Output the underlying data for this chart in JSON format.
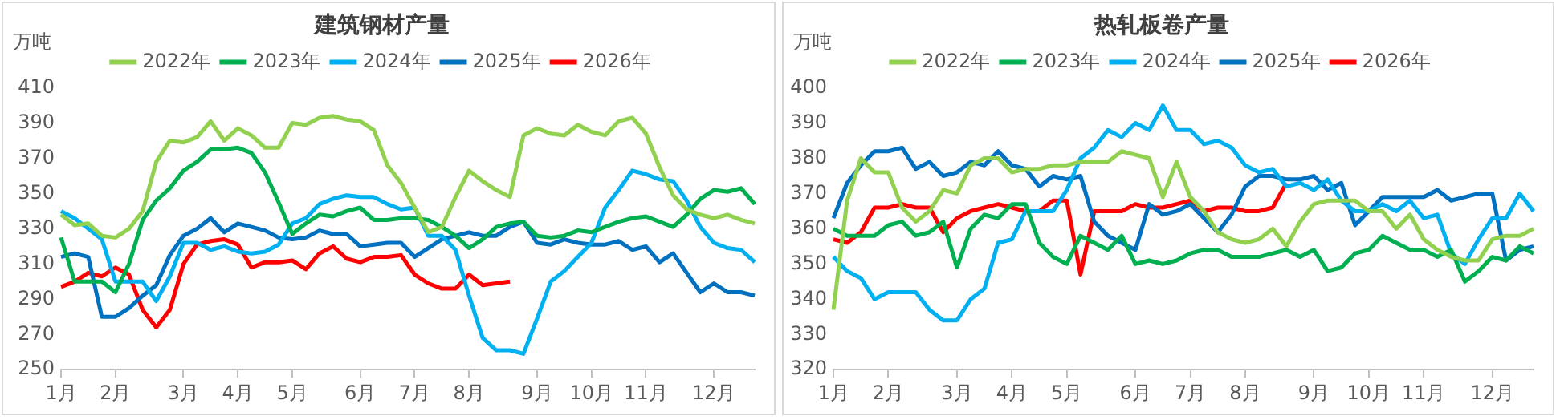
{
  "chart_data": [
    {
      "type": "line",
      "title": "建筑钢材产量",
      "ylabel": "万吨",
      "legend": "top",
      "grid": false,
      "categories": [
        "1月",
        null,
        null,
        null,
        "2月",
        null,
        null,
        null,
        null,
        "3月",
        null,
        null,
        null,
        "4月",
        null,
        null,
        null,
        "5月",
        null,
        null,
        null,
        null,
        "6月",
        null,
        null,
        null,
        "7月",
        null,
        null,
        null,
        "8月",
        null,
        null,
        null,
        null,
        "9月",
        null,
        null,
        null,
        "10月",
        null,
        null,
        null,
        "11月",
        null,
        null,
        null,
        null,
        "12月",
        null,
        null,
        null
      ],
      "ylim": [
        250,
        410
      ],
      "yticks": [
        250,
        270,
        290,
        310,
        330,
        350,
        370,
        390,
        410
      ],
      "series": [
        {
          "name": "2022年",
          "color": "#92d050",
          "values": [
            338,
            332,
            333,
            326,
            325,
            330,
            340,
            368,
            380,
            379,
            382,
            391,
            380,
            387,
            383,
            376,
            376,
            390,
            389,
            393,
            394,
            392,
            391,
            386,
            366,
            356,
            342,
            328,
            331,
            348,
            363,
            357,
            352,
            348,
            383,
            387,
            384,
            383,
            389,
            385,
            383,
            391,
            393,
            384,
            365,
            349,
            341,
            338,
            336,
            338,
            335,
            333
          ]
        },
        {
          "name": "2023年",
          "color": "#00b050",
          "values": [
            325,
            300,
            300,
            300,
            294,
            310,
            335,
            346,
            353,
            363,
            368,
            375,
            375,
            376,
            373,
            362,
            345,
            327,
            333,
            338,
            337,
            340,
            342,
            335,
            335,
            336,
            336,
            335,
            331,
            326,
            319,
            324,
            331,
            333,
            334,
            326,
            325,
            326,
            329,
            328,
            331,
            334,
            336,
            337,
            334,
            331,
            338,
            347,
            352,
            351,
            353,
            344
          ]
        },
        {
          "name": "2024年",
          "color": "#00b0f0",
          "values": [
            340,
            336,
            330,
            324,
            300,
            300,
            300,
            289,
            303,
            322,
            322,
            318,
            320,
            317,
            316,
            317,
            321,
            333,
            336,
            344,
            347,
            349,
            348,
            348,
            344,
            341,
            342,
            326,
            326,
            318,
            292,
            268,
            261,
            261,
            259,
            279,
            300,
            306,
            314,
            322,
            342,
            352,
            363,
            361,
            358,
            357,
            346,
            331,
            322,
            319,
            318,
            311
          ]
        },
        {
          "name": "2025年",
          "color": "#0070c0",
          "values": [
            314,
            316,
            314,
            280,
            280,
            285,
            292,
            298,
            315,
            326,
            330,
            336,
            328,
            333,
            331,
            329,
            325,
            324,
            325,
            329,
            327,
            327,
            320,
            321,
            322,
            322,
            314,
            319,
            324,
            326,
            328,
            326,
            326,
            331,
            334,
            322,
            321,
            324,
            322,
            321,
            321,
            323,
            318,
            320,
            311,
            316,
            305,
            294,
            299,
            294,
            294,
            292
          ]
        },
        {
          "name": "2026年",
          "color": "#ff0000",
          "values": [
            297,
            300,
            305,
            303,
            308,
            304,
            284,
            274,
            284,
            310,
            321,
            323,
            324,
            321,
            308,
            311,
            311,
            312,
            307,
            316,
            320,
            313,
            311,
            314,
            314,
            315,
            304,
            299,
            296,
            296,
            304,
            298,
            299,
            300,
            null,
            null,
            null,
            null,
            null,
            null,
            null,
            null,
            null,
            null,
            null,
            null,
            null,
            null,
            null,
            null,
            null,
            null
          ]
        }
      ]
    },
    {
      "type": "line",
      "title": "热轧板卷产量",
      "ylabel": "万吨",
      "legend": "top",
      "grid": false,
      "categories": [
        "1月",
        null,
        null,
        null,
        "2月",
        null,
        null,
        null,
        null,
        "3月",
        null,
        null,
        null,
        "4月",
        null,
        null,
        null,
        "5月",
        null,
        null,
        null,
        null,
        "6月",
        null,
        null,
        null,
        "7月",
        null,
        null,
        null,
        "8月",
        null,
        null,
        null,
        null,
        "9月",
        null,
        null,
        null,
        "10月",
        null,
        null,
        null,
        "11月",
        null,
        null,
        null,
        null,
        "12月",
        null,
        null,
        null
      ],
      "ylim": [
        320,
        400
      ],
      "yticks": [
        320,
        330,
        340,
        350,
        360,
        370,
        380,
        390,
        400
      ],
      "series": [
        {
          "name": "2022年",
          "color": "#92d050",
          "values": [
            337,
            368,
            380,
            376,
            376,
            366,
            362,
            365,
            371,
            370,
            378,
            380,
            380,
            376,
            377,
            377,
            378,
            378,
            379,
            379,
            379,
            382,
            381,
            380,
            369,
            379,
            369,
            365,
            359,
            357,
            356,
            357,
            360,
            355,
            362,
            367,
            368,
            368,
            368,
            365,
            365,
            360,
            364,
            357,
            354,
            352,
            351,
            351,
            357,
            358,
            358,
            360
          ]
        },
        {
          "name": "2023年",
          "color": "#00b050",
          "values": [
            360,
            358,
            358,
            358,
            361,
            362,
            358,
            359,
            362,
            349,
            360,
            364,
            363,
            367,
            367,
            356,
            352,
            350,
            358,
            356,
            354,
            358,
            350,
            351,
            350,
            351,
            353,
            354,
            354,
            352,
            352,
            352,
            353,
            354,
            352,
            354,
            348,
            349,
            353,
            354,
            358,
            356,
            354,
            354,
            352,
            354,
            345,
            348,
            352,
            351,
            355,
            353
          ]
        },
        {
          "name": "2024年",
          "color": "#00b0f0",
          "values": [
            352,
            348,
            346,
            340,
            342,
            342,
            342,
            337,
            334,
            334,
            340,
            343,
            356,
            357,
            365,
            365,
            365,
            371,
            380,
            383,
            388,
            386,
            390,
            388,
            395,
            388,
            388,
            384,
            385,
            383,
            378,
            376,
            377,
            372,
            373,
            371,
            374,
            368,
            365,
            365,
            367,
            365,
            368,
            363,
            364,
            353,
            350,
            357,
            363,
            363,
            370,
            365
          ]
        },
        {
          "name": "2025年",
          "color": "#0070c0",
          "values": [
            363,
            373,
            378,
            382,
            382,
            383,
            377,
            379,
            375,
            376,
            379,
            378,
            382,
            378,
            377,
            372,
            375,
            374,
            375,
            362,
            358,
            356,
            354,
            367,
            364,
            365,
            367,
            363,
            359,
            364,
            372,
            375,
            375,
            374,
            374,
            375,
            371,
            373,
            361,
            365,
            369,
            369,
            369,
            369,
            371,
            368,
            369,
            370,
            370,
            351,
            354,
            355
          ]
        },
        {
          "name": "2026年",
          "color": "#ff0000",
          "values": [
            357,
            356,
            359,
            366,
            366,
            367,
            366,
            366,
            359,
            363,
            365,
            366,
            367,
            366,
            365,
            365,
            368,
            368,
            347,
            365,
            365,
            365,
            367,
            366,
            366,
            367,
            368,
            365,
            366,
            366,
            365,
            365,
            366,
            373,
            null,
            null,
            null,
            null,
            null,
            null,
            null,
            null,
            null,
            null,
            null,
            null,
            null,
            null,
            null,
            null,
            null,
            null
          ]
        }
      ]
    }
  ]
}
